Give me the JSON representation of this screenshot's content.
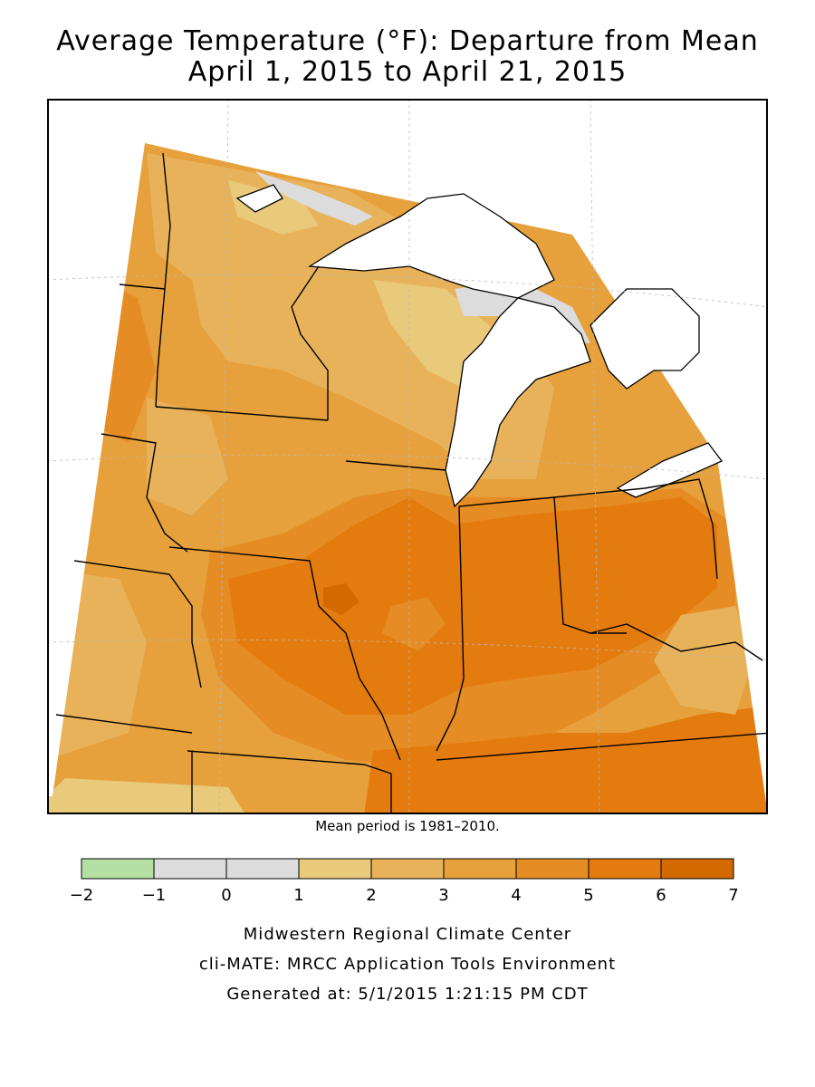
{
  "title_line1": "Average Temperature (°F): Departure from Mean",
  "title_line2": "April 1, 2015 to April 21, 2015",
  "mean_note": "Mean period is 1981–2010.",
  "legend": {
    "colors": [
      "#b4e0a3",
      "#dcdcdc",
      "#dcdcdc",
      "#e9c97a",
      "#e8b25a",
      "#e6a03c",
      "#e68c24",
      "#e47b0e",
      "#d36a00"
    ],
    "ticks": [
      "−2",
      "−1",
      "0",
      "1",
      "2",
      "3",
      "4",
      "5",
      "6",
      "7"
    ]
  },
  "credits": {
    "line1": "Midwestern Regional Climate Center",
    "line2": "cli-MATE: MRCC Application Tools Environment",
    "line3": "Generated at: 5/1/2015 1:21:15 PM CDT"
  },
  "colors": {
    "base": "#e6a03c",
    "light": "#e8b25a",
    "pale": "#e9c97a",
    "mid": "#e68c24",
    "strong": "#e47b0e",
    "darkest": "#d36a00",
    "gray": "#dcdcdc",
    "water": "#ffffff"
  }
}
